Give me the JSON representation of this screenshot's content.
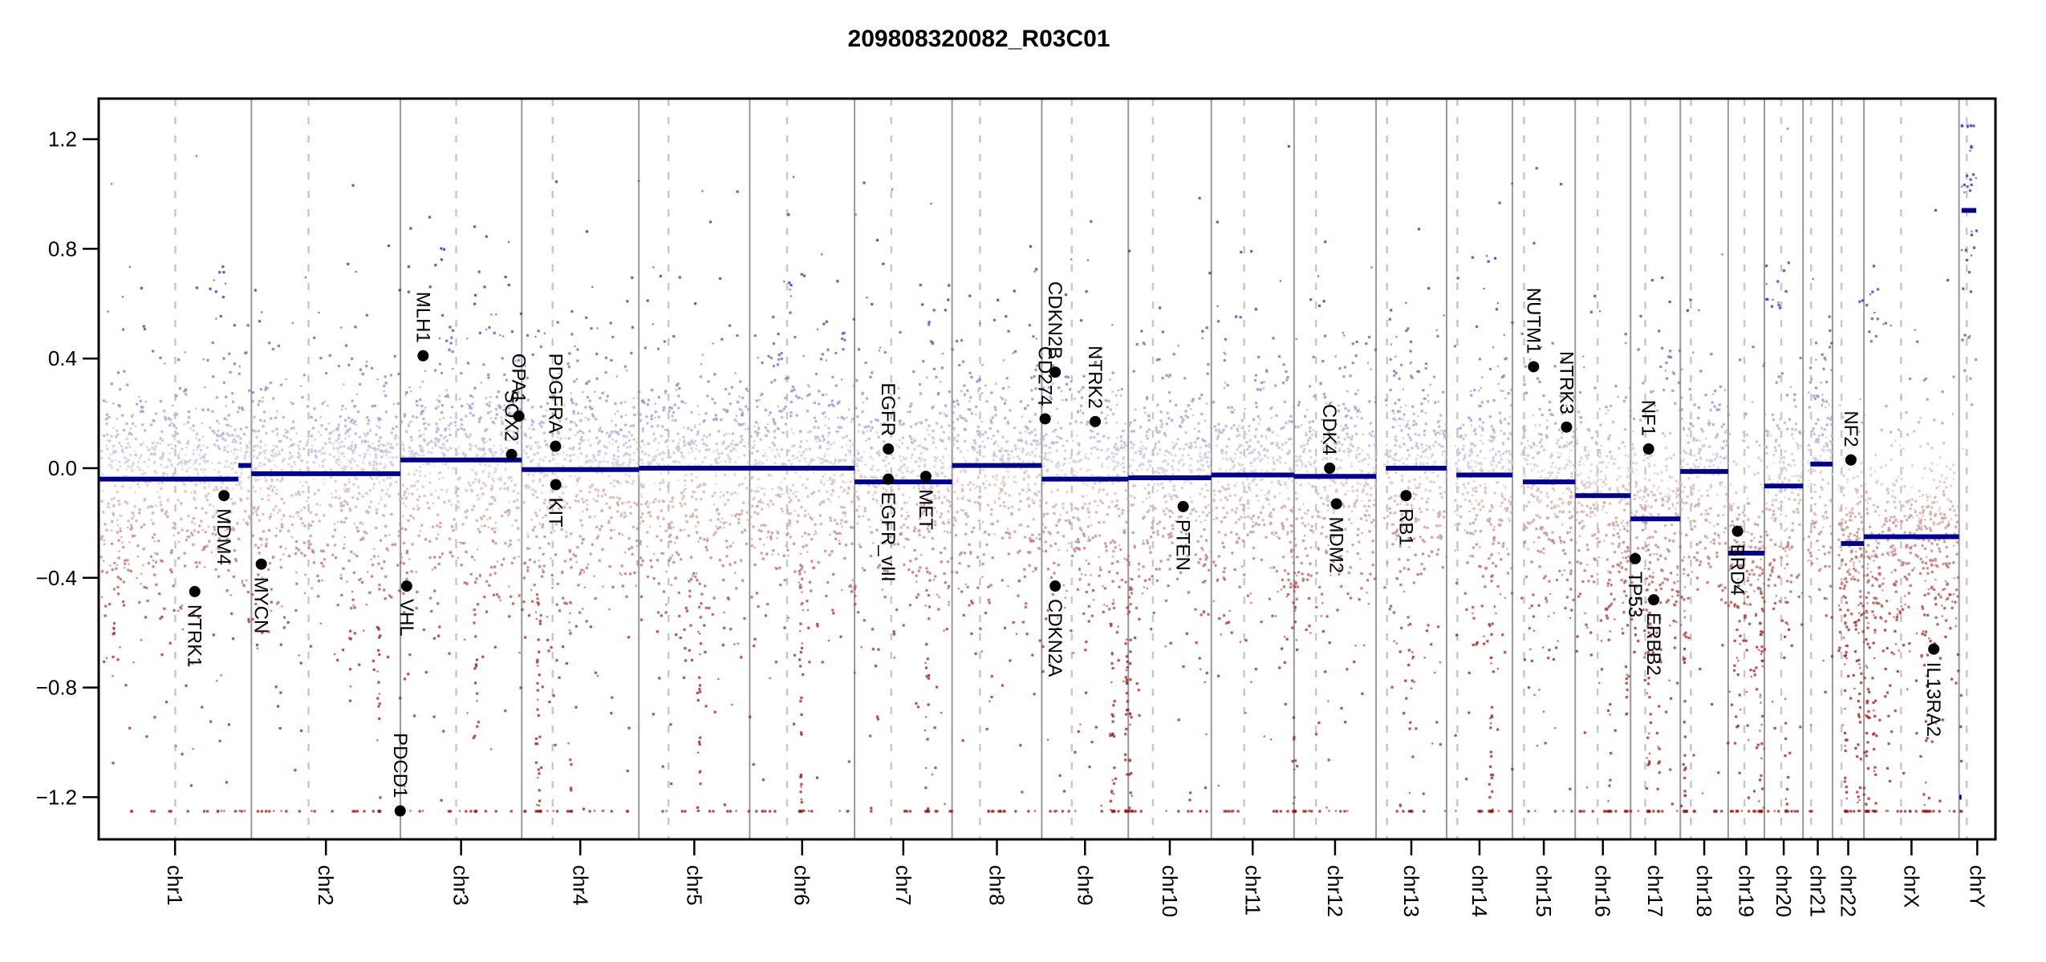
{
  "title": "209808320082_R03C01",
  "chart_data": {
    "type": "scatter",
    "title": "209808320082_R03C01",
    "xlabel": "",
    "ylabel": "",
    "ylim": [
      -1.35,
      1.35
    ],
    "point_clamp": [
      -1.25,
      1.25
    ],
    "grid": "chromosome-boundaries-solid, centromeres-dashed",
    "legend": "none",
    "y_ticks": [
      {
        "value": 1.2,
        "label": "1.2"
      },
      {
        "value": 0.8,
        "label": "0.8"
      },
      {
        "value": 0.4,
        "label": "0.4"
      },
      {
        "value": 0.0,
        "label": "0.0"
      },
      {
        "value": -0.4,
        "label": "−0.4"
      },
      {
        "value": -0.8,
        "label": "−0.8"
      },
      {
        "value": -1.2,
        "label": "−1.2"
      }
    ],
    "genome_total_mb": 3095.67,
    "chromosomes": [
      {
        "name": "chr1",
        "length_mb": 249.25,
        "centromere_mb": 125.0
      },
      {
        "name": "chr2",
        "length_mb": 243.2,
        "centromere_mb": 93.3
      },
      {
        "name": "chr3",
        "length_mb": 198.02,
        "centromere_mb": 91.0
      },
      {
        "name": "chr4",
        "length_mb": 191.15,
        "centromere_mb": 50.4
      },
      {
        "name": "chr5",
        "length_mb": 180.92,
        "centromere_mb": 48.4
      },
      {
        "name": "chr6",
        "length_mb": 171.12,
        "centromere_mb": 61.0
      },
      {
        "name": "chr7",
        "length_mb": 159.14,
        "centromere_mb": 59.9
      },
      {
        "name": "chr8",
        "length_mb": 146.36,
        "centromere_mb": 45.6
      },
      {
        "name": "chr9",
        "length_mb": 141.21,
        "centromere_mb": 49.0
      },
      {
        "name": "chr10",
        "length_mb": 135.53,
        "centromere_mb": 40.2
      },
      {
        "name": "chr11",
        "length_mb": 135.01,
        "centromere_mb": 53.7
      },
      {
        "name": "chr12",
        "length_mb": 133.85,
        "centromere_mb": 35.8
      },
      {
        "name": "chr13",
        "length_mb": 115.17,
        "centromere_mb": 17.9,
        "acro": true
      },
      {
        "name": "chr14",
        "length_mb": 107.35,
        "centromere_mb": 17.6,
        "acro": true
      },
      {
        "name": "chr15",
        "length_mb": 102.53,
        "centromere_mb": 19.0,
        "acro": true
      },
      {
        "name": "chr16",
        "length_mb": 90.35,
        "centromere_mb": 36.6
      },
      {
        "name": "chr17",
        "length_mb": 81.2,
        "centromere_mb": 24.0
      },
      {
        "name": "chr18",
        "length_mb": 78.08,
        "centromere_mb": 17.2
      },
      {
        "name": "chr19",
        "length_mb": 59.13,
        "centromere_mb": 26.5
      },
      {
        "name": "chr20",
        "length_mb": 63.03,
        "centromere_mb": 27.5
      },
      {
        "name": "chr21",
        "length_mb": 48.13,
        "centromere_mb": 13.2,
        "acro": true
      },
      {
        "name": "chr22",
        "length_mb": 51.3,
        "centromere_mb": 14.7,
        "acro": true
      },
      {
        "name": "chrX",
        "length_mb": 155.27,
        "centromere_mb": 60.6
      },
      {
        "name": "chrY",
        "length_mb": 59.37,
        "centromere_mb": 12.5
      }
    ],
    "segments": [
      {
        "chr": "chr1",
        "start_mb": 0,
        "end_mb": 228,
        "log2": -0.04
      },
      {
        "chr": "chr1",
        "start_mb": 228,
        "end_mb": 249.25,
        "log2": 0.01
      },
      {
        "chr": "chr2",
        "start_mb": 0,
        "end_mb": 243.2,
        "log2": -0.02
      },
      {
        "chr": "chr3",
        "start_mb": 0,
        "end_mb": 198.02,
        "log2": 0.03
      },
      {
        "chr": "chr4",
        "start_mb": 0,
        "end_mb": 191.15,
        "log2": -0.005
      },
      {
        "chr": "chr5",
        "start_mb": 0,
        "end_mb": 180.92,
        "log2": 0.0
      },
      {
        "chr": "chr6",
        "start_mb": 0,
        "end_mb": 171.12,
        "log2": 0.0
      },
      {
        "chr": "chr7",
        "start_mb": 0,
        "end_mb": 159.14,
        "log2": -0.05
      },
      {
        "chr": "chr8",
        "start_mb": 0,
        "end_mb": 146.36,
        "log2": 0.01
      },
      {
        "chr": "chr9",
        "start_mb": 0,
        "end_mb": 141.21,
        "log2": -0.04
      },
      {
        "chr": "chr10",
        "start_mb": 0,
        "end_mb": 135.53,
        "log2": -0.035
      },
      {
        "chr": "chr11",
        "start_mb": 0,
        "end_mb": 135.01,
        "log2": -0.025
      },
      {
        "chr": "chr12",
        "start_mb": 0,
        "end_mb": 133.85,
        "log2": -0.03
      },
      {
        "chr": "chr13",
        "start_mb": 16,
        "end_mb": 115.17,
        "log2": 0.0
      },
      {
        "chr": "chr14",
        "start_mb": 16,
        "end_mb": 107.35,
        "log2": -0.025
      },
      {
        "chr": "chr15",
        "start_mb": 17,
        "end_mb": 102.53,
        "log2": -0.05
      },
      {
        "chr": "chr16",
        "start_mb": 0,
        "end_mb": 90.35,
        "log2": -0.1
      },
      {
        "chr": "chr17",
        "start_mb": 0,
        "end_mb": 81.2,
        "log2": -0.185
      },
      {
        "chr": "chr18",
        "start_mb": 0,
        "end_mb": 78.08,
        "log2": -0.012
      },
      {
        "chr": "chr19",
        "start_mb": 0,
        "end_mb": 59.13,
        "log2": -0.31
      },
      {
        "chr": "chr20",
        "start_mb": 0,
        "end_mb": 63.03,
        "log2": -0.065
      },
      {
        "chr": "chr21",
        "start_mb": 12,
        "end_mb": 48.13,
        "log2": 0.015
      },
      {
        "chr": "chr22",
        "start_mb": 14,
        "end_mb": 51.3,
        "log2": -0.275
      },
      {
        "chr": "chrX",
        "start_mb": 0,
        "end_mb": 155.27,
        "log2": -0.25
      },
      {
        "chr": "chrY",
        "start_mb": 0.5,
        "end_mb": 4,
        "log2": -1.2
      },
      {
        "chr": "chrY",
        "start_mb": 4,
        "end_mb": 28,
        "log2": 0.94
      }
    ],
    "genes": [
      {
        "name": "NTRK1",
        "chr": "chr1",
        "pos_mb": 156.8,
        "log2": -0.45,
        "label_side": "below"
      },
      {
        "name": "MDM4",
        "chr": "chr1",
        "pos_mb": 204.5,
        "log2": -0.1,
        "label_side": "below"
      },
      {
        "name": "MYCN",
        "chr": "chr2",
        "pos_mb": 16.1,
        "log2": -0.35,
        "label_side": "below"
      },
      {
        "name": "PDCD1",
        "chr": "chr2",
        "pos_mb": 242.8,
        "log2": -1.25,
        "label_side": "above"
      },
      {
        "name": "VHL",
        "chr": "chr3",
        "pos_mb": 10.2,
        "log2": -0.43,
        "label_side": "below"
      },
      {
        "name": "MLH1",
        "chr": "chr3",
        "pos_mb": 37.0,
        "log2": 0.41,
        "label_side": "above"
      },
      {
        "name": "SOX2",
        "chr": "chr3",
        "pos_mb": 181.4,
        "log2": 0.05,
        "label_side": "above"
      },
      {
        "name": "OPA1",
        "chr": "chr3",
        "pos_mb": 193.3,
        "log2": 0.19,
        "label_side": "above"
      },
      {
        "name": "PDGFRA",
        "chr": "chr4",
        "pos_mb": 55.1,
        "log2": 0.08,
        "label_side": "above"
      },
      {
        "name": "KIT",
        "chr": "chr4",
        "pos_mb": 55.6,
        "log2": -0.06,
        "label_side": "below"
      },
      {
        "name": "EGFR",
        "chr": "chr7",
        "pos_mb": 55.1,
        "log2": 0.07,
        "label_side": "above"
      },
      {
        "name": "EGFR_vIII",
        "chr": "chr7",
        "pos_mb": 55.1,
        "log2": -0.04,
        "label_side": "below"
      },
      {
        "name": "MET",
        "chr": "chr7",
        "pos_mb": 116.3,
        "log2": -0.03,
        "label_side": "below"
      },
      {
        "name": "CD274",
        "chr": "chr9",
        "pos_mb": 5.5,
        "log2": 0.18,
        "label_side": "above"
      },
      {
        "name": "CDKN2A",
        "chr": "chr9",
        "pos_mb": 21.97,
        "log2": -0.43,
        "label_side": "below"
      },
      {
        "name": "CDKN2B",
        "chr": "chr9",
        "pos_mb": 22.0,
        "log2": 0.35,
        "label_side": "above"
      },
      {
        "name": "NTRK2",
        "chr": "chr9",
        "pos_mb": 87.3,
        "log2": 0.17,
        "label_side": "above"
      },
      {
        "name": "PTEN",
        "chr": "chr10",
        "pos_mb": 89.6,
        "log2": -0.14,
        "label_side": "below"
      },
      {
        "name": "CDK4",
        "chr": "chr12",
        "pos_mb": 58.1,
        "log2": 0.0,
        "label_side": "above"
      },
      {
        "name": "MDM2",
        "chr": "chr12",
        "pos_mb": 69.2,
        "log2": -0.13,
        "label_side": "below"
      },
      {
        "name": "RB1",
        "chr": "chr13",
        "pos_mb": 48.9,
        "log2": -0.1,
        "label_side": "below"
      },
      {
        "name": "NUTM1",
        "chr": "chr15",
        "pos_mb": 34.6,
        "log2": 0.37,
        "label_side": "above"
      },
      {
        "name": "NTRK3",
        "chr": "chr15",
        "pos_mb": 88.4,
        "log2": 0.15,
        "label_side": "above"
      },
      {
        "name": "NF1",
        "chr": "chr17",
        "pos_mb": 29.4,
        "log2": 0.07,
        "label_side": "above"
      },
      {
        "name": "TP53",
        "chr": "chr17",
        "pos_mb": 7.57,
        "log2": -0.33,
        "label_side": "below"
      },
      {
        "name": "ERBB2",
        "chr": "chr17",
        "pos_mb": 37.8,
        "log2": -0.48,
        "label_side": "below"
      },
      {
        "name": "BRD4",
        "chr": "chr19",
        "pos_mb": 15.3,
        "log2": -0.23,
        "label_side": "below"
      },
      {
        "name": "NF2",
        "chr": "chr22",
        "pos_mb": 30.0,
        "log2": 0.03,
        "label_side": "above"
      },
      {
        "name": "IL13RA2",
        "chr": "chrX",
        "pos_mb": 114.0,
        "log2": -0.66,
        "label_side": "below"
      }
    ],
    "colors": {
      "segment": "#00008B",
      "gain_point_strong": "#2F2F9A",
      "loss_point_strong": "#942020",
      "loss_point_floor": "#8B1A1A",
      "neutral_point": "#D6D3DE",
      "annotation_dot": "#000000",
      "chrom_boundary": "#999999",
      "centromere": "#C8C8C8",
      "axis": "#000000",
      "background": "#FFFFFF"
    },
    "scatter_style": {
      "seed": 1337,
      "points_per_mb": 3.1,
      "sigma_core": 0.16,
      "sigma_mid": 0.3,
      "sigma_tail": 0.55,
      "negative_skew": 1.35,
      "floor": -1.25,
      "cap": 1.25,
      "loss_streaks": 26,
      "gain_clusters": 8
    }
  }
}
